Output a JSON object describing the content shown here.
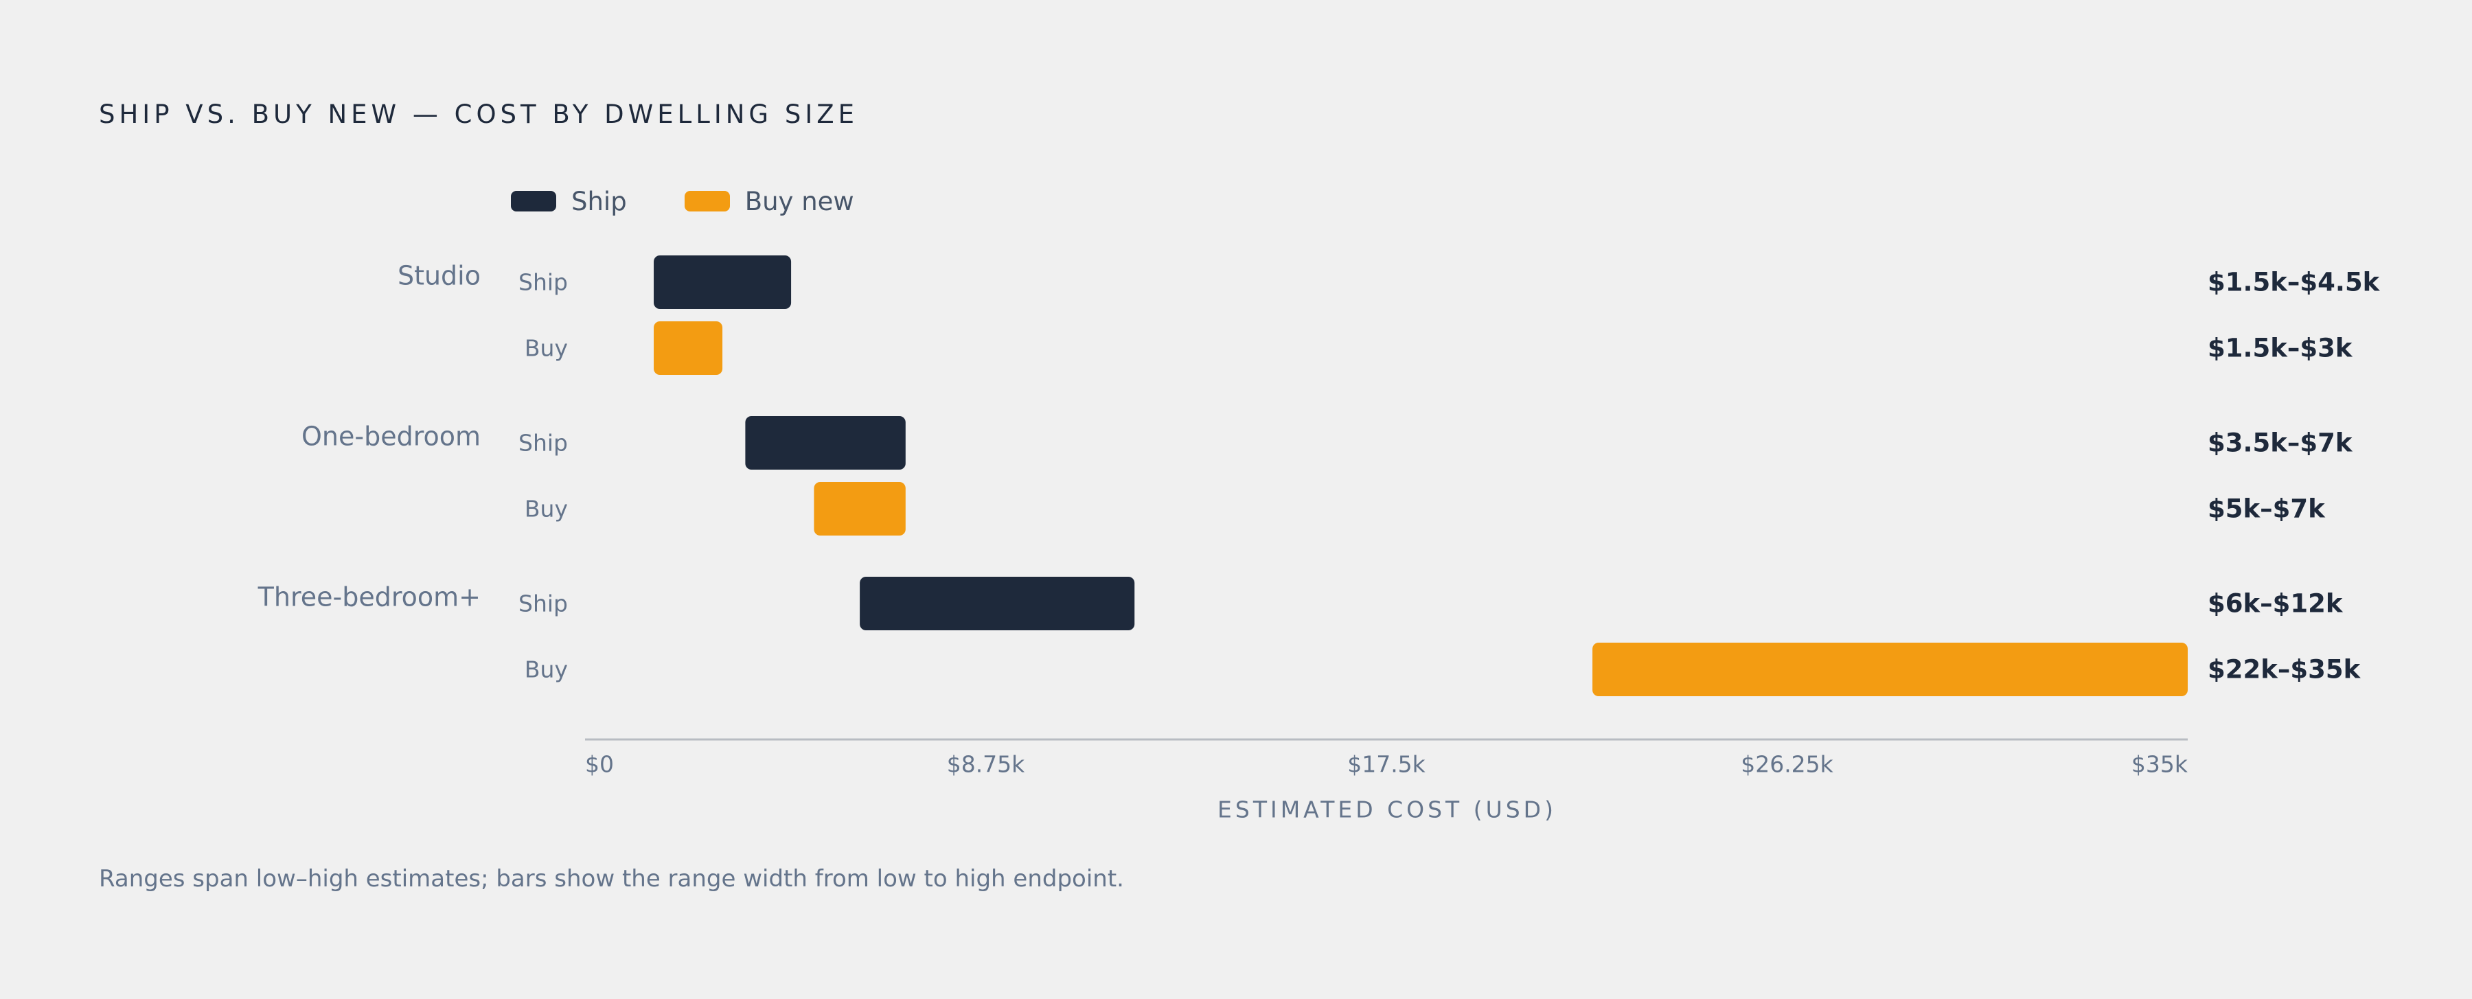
{
  "title": "SHIP VS. BUY NEW — COST BY DWELLING SIZE",
  "legend": {
    "ship_label": "Ship",
    "buy_label": "Buy new"
  },
  "note": "Ranges span low–high estimates; bars show the range width from low to high endpoint.",
  "colors": {
    "ship": "#1e293b",
    "buy": "#f39c12",
    "group_label": "#64748b",
    "row_label": "#64748b",
    "value_label": "#1e293b",
    "axis": "#b8bcc2",
    "background": "#f0f0f0"
  },
  "chart_data": {
    "type": "bar",
    "orientation": "horizontal",
    "bar_style": "range",
    "xlabel": "ESTIMATED COST (USD)",
    "xlim": [
      0,
      35000
    ],
    "x_ticks": [
      {
        "value": 0,
        "label": "$0"
      },
      {
        "value": 8750,
        "label": "$8.75k"
      },
      {
        "value": 17500,
        "label": "$17.5k"
      },
      {
        "value": 26250,
        "label": "$26.25k"
      },
      {
        "value": 35000,
        "label": "$35k"
      }
    ],
    "grid": false,
    "legend_position": "top-left",
    "groups": [
      {
        "name": "Studio",
        "rows": [
          {
            "series": "Ship",
            "label": "Ship",
            "low": 1500,
            "high": 4500,
            "value_label": "$1.5k–$4.5k"
          },
          {
            "series": "Buy new",
            "label": "Buy",
            "low": 1500,
            "high": 3000,
            "value_label": "$1.5k–$3k"
          }
        ]
      },
      {
        "name": "One-bedroom",
        "rows": [
          {
            "series": "Ship",
            "label": "Ship",
            "low": 3500,
            "high": 7000,
            "value_label": "$3.5k–$7k"
          },
          {
            "series": "Buy new",
            "label": "Buy",
            "low": 5000,
            "high": 7000,
            "value_label": "$5k–$7k"
          }
        ]
      },
      {
        "name": "Three-bedroom+",
        "rows": [
          {
            "series": "Ship",
            "label": "Ship",
            "low": 6000,
            "high": 12000,
            "value_label": "$6k–$12k"
          },
          {
            "series": "Buy new",
            "label": "Buy",
            "low": 22000,
            "high": 35000,
            "value_label": "$22k–$35k"
          }
        ]
      }
    ]
  }
}
